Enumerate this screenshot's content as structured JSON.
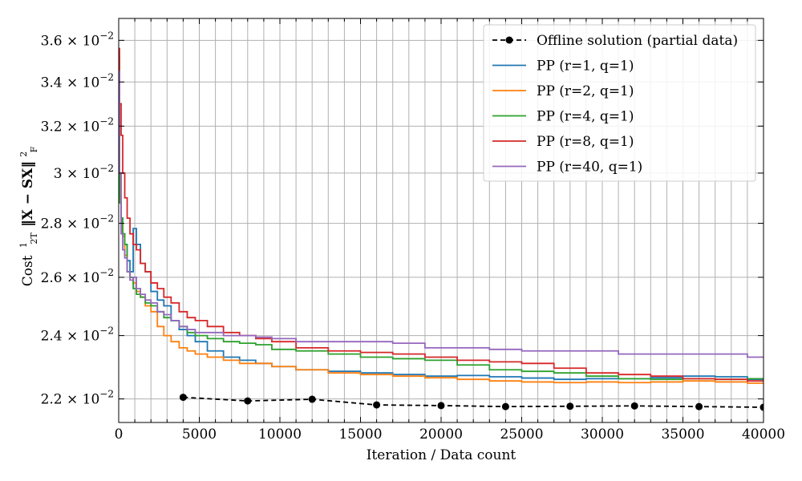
{
  "chart_data": {
    "type": "line",
    "title": "",
    "xlabel": "Iteration / Data count",
    "ylabel": "Cost ½ₜ‖X − SX‖²_F",
    "ylabel_parts": {
      "prefix": "Cost",
      "frac_num": "1",
      "frac_den": "2T",
      "norm": "‖X − SX‖",
      "sup": "2",
      "sub": "F"
    },
    "xscale": "linear",
    "yscale": "log",
    "xlim": [
      0,
      40000
    ],
    "ylim": [
      0.0213,
      0.0371
    ],
    "grid": true,
    "legend_position": "top-right",
    "xticks": [
      0,
      5000,
      10000,
      15000,
      20000,
      25000,
      30000,
      35000,
      40000
    ],
    "xtick_labels": [
      "0",
      "5000",
      "10000",
      "15000",
      "20000",
      "25000",
      "30000",
      "35000",
      "40000"
    ],
    "yticks": [
      {
        "value": 0.022,
        "mant": "2.2 × 10",
        "exp": "−2"
      },
      {
        "value": 0.024,
        "mant": "2.4 × 10",
        "exp": "−2"
      },
      {
        "value": 0.026,
        "mant": "2.6 × 10",
        "exp": "−2"
      },
      {
        "value": 0.028,
        "mant": "2.8 × 10",
        "exp": "−2"
      },
      {
        "value": 0.03,
        "mant": "3 × 10",
        "exp": "−2"
      },
      {
        "value": 0.032,
        "mant": "3.2 × 10",
        "exp": "−2"
      },
      {
        "value": 0.034,
        "mant": "3.4 × 10",
        "exp": "−2"
      },
      {
        "value": 0.036,
        "mant": "3.6 × 10",
        "exp": "−2"
      }
    ],
    "series": [
      {
        "name": "Offline solution (partial data)",
        "color": "#000000",
        "style": "dashed-markers",
        "x": [
          4000,
          8000,
          12000,
          16000,
          20000,
          24000,
          28000,
          32000,
          36000,
          40000
        ],
        "y": [
          0.02205,
          0.02194,
          0.02199,
          0.02182,
          0.0218,
          0.02177,
          0.02178,
          0.02179,
          0.02177,
          0.02175
        ]
      },
      {
        "name": "PP (r=1, q=1)",
        "color": "#1f77b4",
        "style": "solid",
        "x": [
          0,
          100,
          200,
          300,
          450,
          600,
          800,
          1000,
          1200,
          1500,
          1800,
          2200,
          2600,
          3000,
          3500,
          4000,
          4500,
          5000,
          6000,
          7000,
          8000,
          9000,
          10000,
          12000,
          14000,
          16000,
          18000,
          20000,
          22000,
          24000,
          26000,
          28000,
          30000,
          32000,
          34000,
          36000,
          38000,
          40000
        ],
        "y": [
          0.0352,
          0.029,
          0.0282,
          0.0276,
          0.0272,
          0.0266,
          0.0262,
          0.0278,
          0.0272,
          0.0265,
          0.0262,
          0.0255,
          0.0252,
          0.025,
          0.0245,
          0.0242,
          0.024,
          0.0238,
          0.0235,
          0.0233,
          0.0232,
          0.0231,
          0.023,
          0.0229,
          0.02285,
          0.0228,
          0.02275,
          0.0227,
          0.02272,
          0.02268,
          0.02264,
          0.0226,
          0.02262,
          0.02262,
          0.02265,
          0.0227,
          0.02268,
          0.0226
        ]
      },
      {
        "name": "PP (r=2, q=1)",
        "color": "#ff7f0e",
        "style": "solid",
        "x": [
          0,
          100,
          200,
          300,
          450,
          600,
          800,
          1000,
          1200,
          1500,
          1800,
          2200,
          2600,
          3000,
          3500,
          4000,
          4500,
          5000,
          6000,
          7000,
          8000,
          9000,
          10000,
          12000,
          14000,
          16000,
          18000,
          20000,
          22000,
          24000,
          26000,
          28000,
          30000,
          32000,
          34000,
          36000,
          38000,
          40000
        ],
        "y": [
          0.0355,
          0.03,
          0.028,
          0.0275,
          0.0268,
          0.0262,
          0.026,
          0.0258,
          0.0255,
          0.0253,
          0.025,
          0.0248,
          0.0243,
          0.024,
          0.0238,
          0.0236,
          0.0235,
          0.0234,
          0.0233,
          0.0232,
          0.0231,
          0.0231,
          0.023,
          0.0229,
          0.0228,
          0.02275,
          0.0227,
          0.02265,
          0.0226,
          0.02255,
          0.02252,
          0.0225,
          0.02252,
          0.0225,
          0.02252,
          0.02255,
          0.02252,
          0.02248
        ]
      },
      {
        "name": "PP (r=4, q=1)",
        "color": "#2ca02c",
        "style": "solid",
        "x": [
          0,
          100,
          200,
          300,
          450,
          600,
          800,
          1000,
          1200,
          1500,
          1800,
          2200,
          2600,
          3000,
          3500,
          4000,
          4500,
          5000,
          6000,
          7000,
          8000,
          9000,
          10000,
          12000,
          14000,
          16000,
          18000,
          20000,
          22000,
          24000,
          26000,
          28000,
          30000,
          32000,
          34000,
          36000,
          38000,
          40000
        ],
        "y": [
          0.035,
          0.0288,
          0.0282,
          0.0276,
          0.0272,
          0.0262,
          0.026,
          0.0256,
          0.0254,
          0.0253,
          0.0251,
          0.025,
          0.0248,
          0.0246,
          0.0245,
          0.0243,
          0.0241,
          0.024,
          0.0239,
          0.0238,
          0.02375,
          0.0237,
          0.02355,
          0.0235,
          0.0234,
          0.0233,
          0.02325,
          0.0232,
          0.02305,
          0.0229,
          0.02285,
          0.0228,
          0.0227,
          0.02262,
          0.0226,
          0.02262,
          0.0226,
          0.02262
        ]
      },
      {
        "name": "PP (r=8, q=1)",
        "color": "#d62728",
        "style": "solid",
        "x": [
          0,
          100,
          200,
          300,
          450,
          600,
          800,
          1000,
          1200,
          1500,
          1800,
          2200,
          2600,
          3000,
          3500,
          4000,
          4500,
          5000,
          6000,
          7000,
          8000,
          9000,
          10000,
          12000,
          14000,
          16000,
          18000,
          20000,
          22000,
          24000,
          26000,
          28000,
          30000,
          32000,
          34000,
          36000,
          38000,
          40000
        ],
        "y": [
          0.0356,
          0.033,
          0.0316,
          0.03,
          0.029,
          0.0282,
          0.0276,
          0.0272,
          0.027,
          0.0265,
          0.0262,
          0.0258,
          0.0256,
          0.0253,
          0.0251,
          0.0248,
          0.0246,
          0.0245,
          0.0243,
          0.0241,
          0.024,
          0.0239,
          0.0238,
          0.0236,
          0.0235,
          0.02345,
          0.0234,
          0.0233,
          0.0232,
          0.02315,
          0.0231,
          0.02295,
          0.0228,
          0.02275,
          0.0227,
          0.02262,
          0.0226,
          0.02255
        ]
      },
      {
        "name": "PP (r=40, q=1)",
        "color": "#9467bd",
        "style": "solid",
        "x": [
          0,
          100,
          200,
          300,
          450,
          600,
          800,
          1000,
          1200,
          1500,
          1800,
          2200,
          2600,
          3000,
          3500,
          4000,
          4500,
          5000,
          6000,
          7000,
          8000,
          9000,
          10000,
          12000,
          14000,
          16000,
          18000,
          20000,
          22000,
          24000,
          26000,
          28000,
          30000,
          32000,
          34000,
          36000,
          38000,
          40000
        ],
        "y": [
          0.0345,
          0.03,
          0.0276,
          0.027,
          0.0267,
          0.0262,
          0.0259,
          0.026,
          0.0256,
          0.0254,
          0.0252,
          0.0251,
          0.0248,
          0.0247,
          0.0245,
          0.0243,
          0.0242,
          0.0241,
          0.0241,
          0.024,
          0.024,
          0.02395,
          0.0239,
          0.0238,
          0.0238,
          0.0238,
          0.02375,
          0.0236,
          0.0236,
          0.02355,
          0.0235,
          0.0235,
          0.0235,
          0.0234,
          0.0234,
          0.0234,
          0.0234,
          0.0233
        ]
      }
    ]
  }
}
